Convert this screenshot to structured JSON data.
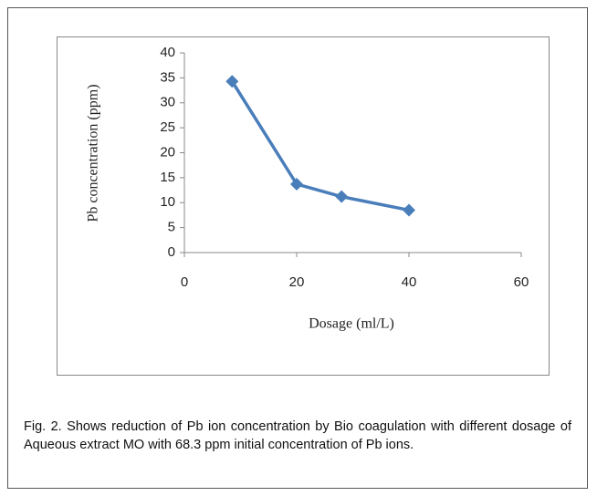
{
  "chart_data": {
    "type": "line",
    "x_label": "Dosage (ml/L)",
    "y_label": "Pb concentration (ppm)",
    "x": [
      8.5,
      20,
      28,
      40
    ],
    "series": [
      {
        "name": "Pb concentration",
        "color": "#4a7ebb",
        "values": [
          34.3,
          13.7,
          11.2,
          8.5
        ]
      }
    ],
    "xlim": [
      0,
      60
    ],
    "xticks": [
      0,
      20,
      40,
      60
    ],
    "ylim": [
      0,
      40
    ],
    "yticks": [
      0,
      5,
      10,
      15,
      20,
      25,
      30,
      35,
      40
    ],
    "grid": false,
    "caption": "Fig. 2. Shows reduction of Pb ion concentration  by Bio coagulation with different dosage of Aqueous extract MO with 68.3 ppm initial concentration of Pb ions."
  }
}
